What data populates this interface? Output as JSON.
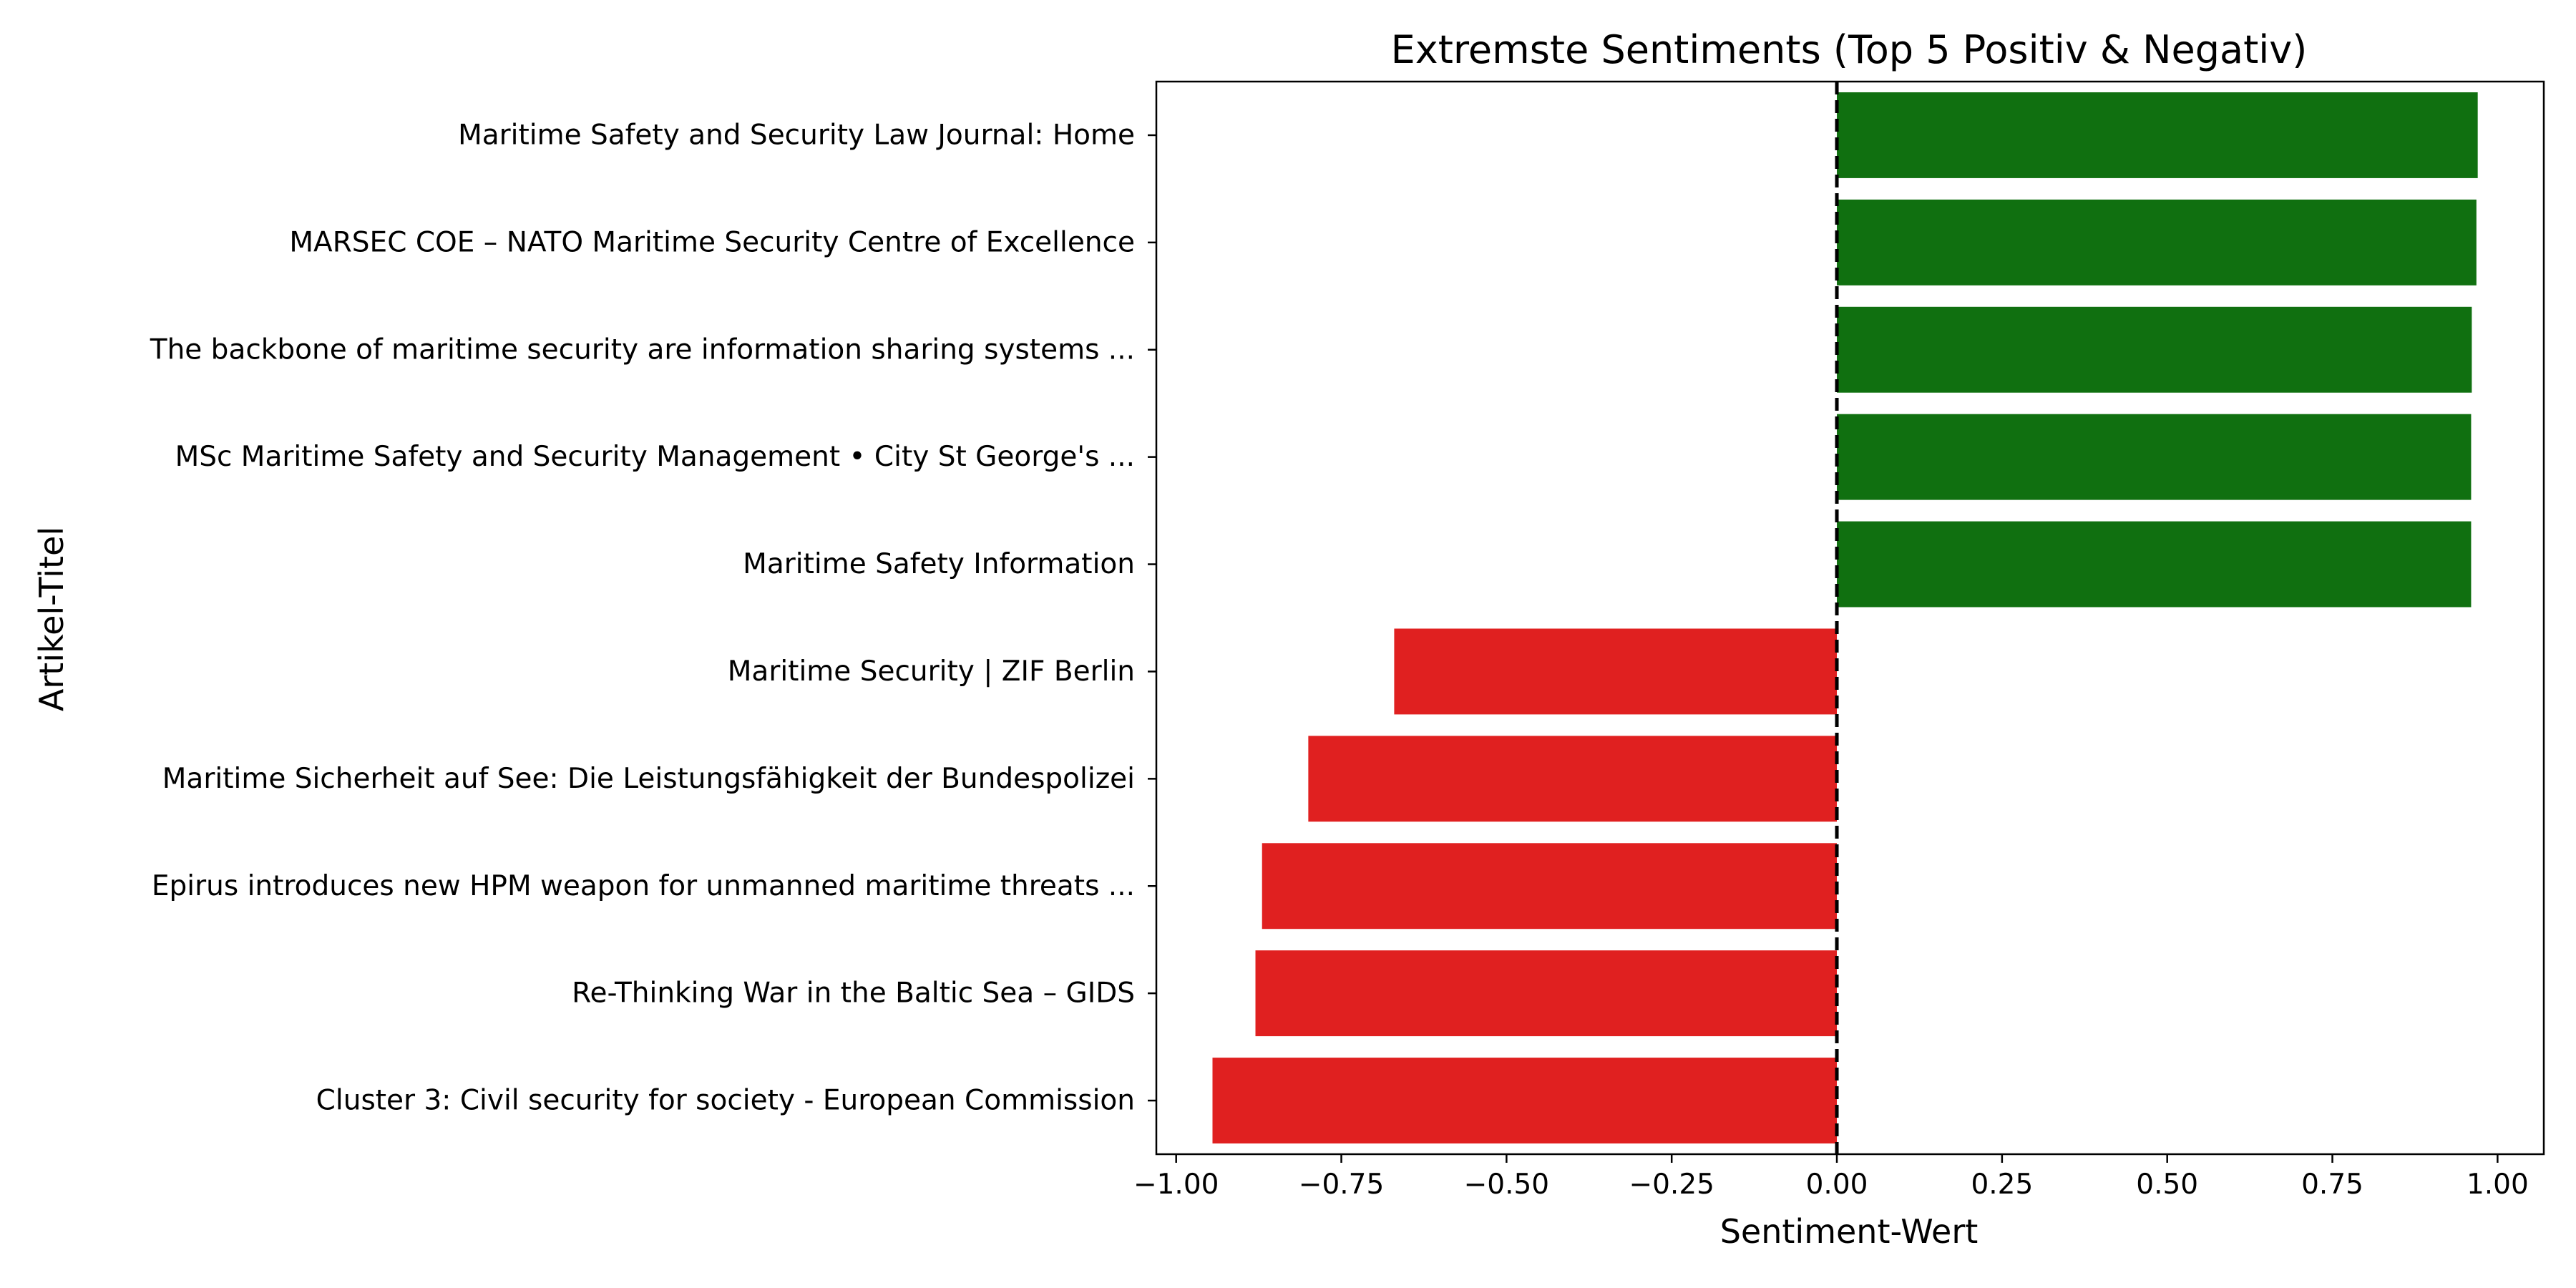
{
  "chart_data": {
    "type": "bar",
    "orientation": "horizontal",
    "title": "Extremste Sentiments (Top 5 Positiv & Negativ)",
    "xlabel": "Sentiment-Wert",
    "ylabel": "Artikel-Titel",
    "xlim": [
      -1.03,
      1.07
    ],
    "xticks": [
      -1.0,
      -0.75,
      -0.5,
      -0.25,
      0.0,
      0.25,
      0.5,
      0.75,
      1.0
    ],
    "xtick_labels": [
      "−1.00",
      "−0.75",
      "−0.50",
      "−0.25",
      "0.00",
      "0.25",
      "0.50",
      "0.75",
      "1.00"
    ],
    "reference_line": {
      "x": 0,
      "style": "dashed",
      "color": "#000000"
    },
    "grid": false,
    "colors": {
      "positive": "#107010",
      "negative": "#e02020"
    },
    "categories": [
      "Maritime Safety and Security Law Journal: Home",
      "MARSEC COE – NATO Maritime Security Centre of Excellence",
      "The backbone of maritime security are information sharing systems ...",
      "MSc Maritime Safety and Security Management • City St George's ...",
      "Maritime Safety Information",
      "Maritime Security | ZIF Berlin",
      "Maritime Sicherheit auf See: Die Leistungsfähigkeit der Bundespolizei",
      "Epirus introduces new HPM weapon for unmanned maritime threats ...",
      "Re-Thinking War in the Baltic Sea – GIDS",
      "Cluster 3: Civil security for society - European Commission"
    ],
    "values": [
      0.97,
      0.968,
      0.961,
      0.96,
      0.96,
      -0.67,
      -0.8,
      -0.87,
      -0.88,
      -0.945
    ]
  }
}
